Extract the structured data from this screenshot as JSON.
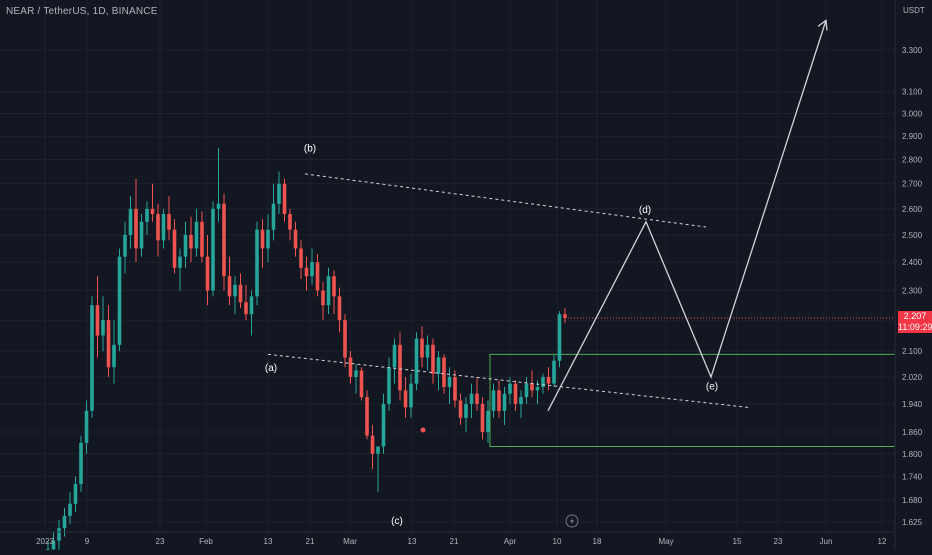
{
  "header": {
    "title": "NEAR / TetherUS, 1D, BINANCE"
  },
  "price_badge": {
    "price": "2.207",
    "countdown": "11:09:29"
  },
  "chart_data": {
    "type": "candlestick",
    "symbol": "NEAR / TetherUS",
    "interval": "1D",
    "exchange": "BINANCE",
    "currency_label": "USDT",
    "y_axis": {
      "scale": "log",
      "ticks": [
        "3.300",
        "3.100",
        "3.000",
        "2.900",
        "2.800",
        "2.700",
        "2.600",
        "2.500",
        "2.400",
        "2.300",
        "2.200",
        "2.100",
        "2.020",
        "1.940",
        "1.860",
        "1.800",
        "1.740",
        "1.680",
        "1.625"
      ]
    },
    "x_axis": {
      "ticks": [
        "2023",
        "9",
        "23",
        "Feb",
        "13",
        "21",
        "Mar",
        "13",
        "21",
        "Apr",
        "10",
        "18",
        "May",
        "15",
        "23",
        "Jun",
        "12"
      ]
    },
    "colors": {
      "up": "#26a69a",
      "down": "#ef5350",
      "background": "#131722",
      "grid": "#1e222d",
      "drawing": "#d1d4dc",
      "box": "#4caf50"
    },
    "ohlc": [
      [
        1.55,
        1.58,
        1.52,
        1.56
      ],
      [
        1.56,
        1.6,
        1.54,
        1.58
      ],
      [
        1.58,
        1.63,
        1.55,
        1.61
      ],
      [
        1.61,
        1.66,
        1.59,
        1.64
      ],
      [
        1.64,
        1.7,
        1.62,
        1.67
      ],
      [
        1.67,
        1.74,
        1.65,
        1.72
      ],
      [
        1.72,
        1.85,
        1.7,
        1.83
      ],
      [
        1.83,
        1.95,
        1.8,
        1.92
      ],
      [
        1.92,
        2.28,
        1.9,
        2.25
      ],
      [
        2.25,
        2.35,
        2.08,
        2.15
      ],
      [
        2.15,
        2.28,
        2.1,
        2.2
      ],
      [
        2.2,
        2.25,
        2.02,
        2.05
      ],
      [
        2.05,
        2.2,
        2.0,
        2.12
      ],
      [
        2.12,
        2.45,
        2.1,
        2.42
      ],
      [
        2.42,
        2.55,
        2.36,
        2.5
      ],
      [
        2.5,
        2.65,
        2.45,
        2.6
      ],
      [
        2.6,
        2.72,
        2.4,
        2.45
      ],
      [
        2.45,
        2.58,
        2.42,
        2.55
      ],
      [
        2.55,
        2.63,
        2.5,
        2.6
      ],
      [
        2.6,
        2.7,
        2.55,
        2.58
      ],
      [
        2.58,
        2.62,
        2.42,
        2.48
      ],
      [
        2.48,
        2.6,
        2.45,
        2.58
      ],
      [
        2.58,
        2.65,
        2.48,
        2.52
      ],
      [
        2.52,
        2.56,
        2.36,
        2.38
      ],
      [
        2.38,
        2.45,
        2.3,
        2.42
      ],
      [
        2.42,
        2.55,
        2.38,
        2.5
      ],
      [
        2.5,
        2.57,
        2.4,
        2.45
      ],
      [
        2.45,
        2.6,
        2.42,
        2.55
      ],
      [
        2.55,
        2.59,
        2.4,
        2.42
      ],
      [
        2.42,
        2.5,
        2.25,
        2.3
      ],
      [
        2.3,
        2.63,
        2.28,
        2.6
      ],
      [
        2.6,
        2.85,
        2.55,
        2.62
      ],
      [
        2.62,
        2.66,
        2.3,
        2.35
      ],
      [
        2.35,
        2.42,
        2.25,
        2.28
      ],
      [
        2.28,
        2.35,
        2.22,
        2.32
      ],
      [
        2.32,
        2.36,
        2.24,
        2.26
      ],
      [
        2.26,
        2.32,
        2.2,
        2.22
      ],
      [
        2.22,
        2.3,
        2.15,
        2.28
      ],
      [
        2.28,
        2.55,
        2.25,
        2.52
      ],
      [
        2.52,
        2.56,
        2.38,
        2.45
      ],
      [
        2.45,
        2.58,
        2.4,
        2.52
      ],
      [
        2.52,
        2.7,
        2.48,
        2.62
      ],
      [
        2.62,
        2.75,
        2.58,
        2.7
      ],
      [
        2.7,
        2.72,
        2.55,
        2.58
      ],
      [
        2.58,
        2.6,
        2.48,
        2.52
      ],
      [
        2.52,
        2.55,
        2.42,
        2.45
      ],
      [
        2.45,
        2.48,
        2.34,
        2.38
      ],
      [
        2.38,
        2.42,
        2.3,
        2.35
      ],
      [
        2.35,
        2.45,
        2.32,
        2.4
      ],
      [
        2.4,
        2.43,
        2.28,
        2.3
      ],
      [
        2.3,
        2.33,
        2.2,
        2.25
      ],
      [
        2.25,
        2.38,
        2.22,
        2.35
      ],
      [
        2.35,
        2.37,
        2.22,
        2.28
      ],
      [
        2.28,
        2.31,
        2.16,
        2.2
      ],
      [
        2.2,
        2.22,
        2.05,
        2.08
      ],
      [
        2.08,
        2.1,
        2.0,
        2.02
      ],
      [
        2.02,
        2.06,
        1.97,
        2.04
      ],
      [
        2.04,
        2.05,
        1.95,
        1.96
      ],
      [
        1.96,
        1.98,
        1.84,
        1.85
      ],
      [
        1.85,
        1.88,
        1.76,
        1.8
      ],
      [
        1.8,
        1.82,
        1.7,
        1.82
      ],
      [
        1.82,
        1.97,
        1.8,
        1.94
      ],
      [
        1.94,
        2.08,
        1.92,
        2.05
      ],
      [
        2.05,
        2.14,
        2.0,
        2.12
      ],
      [
        2.12,
        2.16,
        1.95,
        1.98
      ],
      [
        1.98,
        2.02,
        1.9,
        1.93
      ],
      [
        1.93,
        2.03,
        1.9,
        2.0
      ],
      [
        2.0,
        2.16,
        1.98,
        2.14
      ],
      [
        2.14,
        2.18,
        2.05,
        2.08
      ],
      [
        2.08,
        2.15,
        2.04,
        2.12
      ],
      [
        2.12,
        2.14,
        2.0,
        2.03
      ],
      [
        2.03,
        2.1,
        1.98,
        2.08
      ],
      [
        2.08,
        2.09,
        1.97,
        1.99
      ],
      [
        1.99,
        2.05,
        1.94,
        2.02
      ],
      [
        2.02,
        2.04,
        1.93,
        1.95
      ],
      [
        1.95,
        1.97,
        1.88,
        1.9
      ],
      [
        1.9,
        1.96,
        1.86,
        1.94
      ],
      [
        1.94,
        2.0,
        1.9,
        1.97
      ],
      [
        1.97,
        2.02,
        1.92,
        1.94
      ],
      [
        1.94,
        1.96,
        1.84,
        1.86
      ],
      [
        1.86,
        1.95,
        1.83,
        1.92
      ],
      [
        1.92,
        2.0,
        1.9,
        1.98
      ],
      [
        1.98,
        2.01,
        1.9,
        1.92
      ],
      [
        1.92,
        1.99,
        1.88,
        1.97
      ],
      [
        1.97,
        2.02,
        1.94,
        2.0
      ],
      [
        2.0,
        2.01,
        1.92,
        1.94
      ],
      [
        1.94,
        1.98,
        1.9,
        1.96
      ],
      [
        1.96,
        2.02,
        1.94,
        2.0
      ],
      [
        2.0,
        2.04,
        1.96,
        1.98
      ],
      [
        1.98,
        2.01,
        1.94,
        1.99
      ],
      [
        1.99,
        2.03,
        1.97,
        2.02
      ],
      [
        2.02,
        2.05,
        1.98,
        2.0
      ],
      [
        2.0,
        2.09,
        1.99,
        2.07
      ],
      [
        2.07,
        2.23,
        2.05,
        2.22
      ],
      [
        2.22,
        2.24,
        2.19,
        2.207
      ]
    ],
    "annotations": [
      {
        "label": "(a)",
        "price": 2.05
      },
      {
        "label": "(b)",
        "price": 2.85
      },
      {
        "label": "(c)",
        "price": 1.63
      },
      {
        "label": "(d)",
        "price": 2.6
      },
      {
        "label": "(e)",
        "price": 1.995
      }
    ],
    "drawings": {
      "upper_dashed_trendline": {
        "from": 2.74,
        "to": 2.53
      },
      "lower_dashed_trendline": {
        "from": 2.09,
        "to": 1.93
      },
      "green_box": {
        "top": 2.09,
        "bottom": 1.82
      },
      "projection_path": [
        1.92,
        2.55,
        2.02,
        3.45
      ]
    }
  }
}
